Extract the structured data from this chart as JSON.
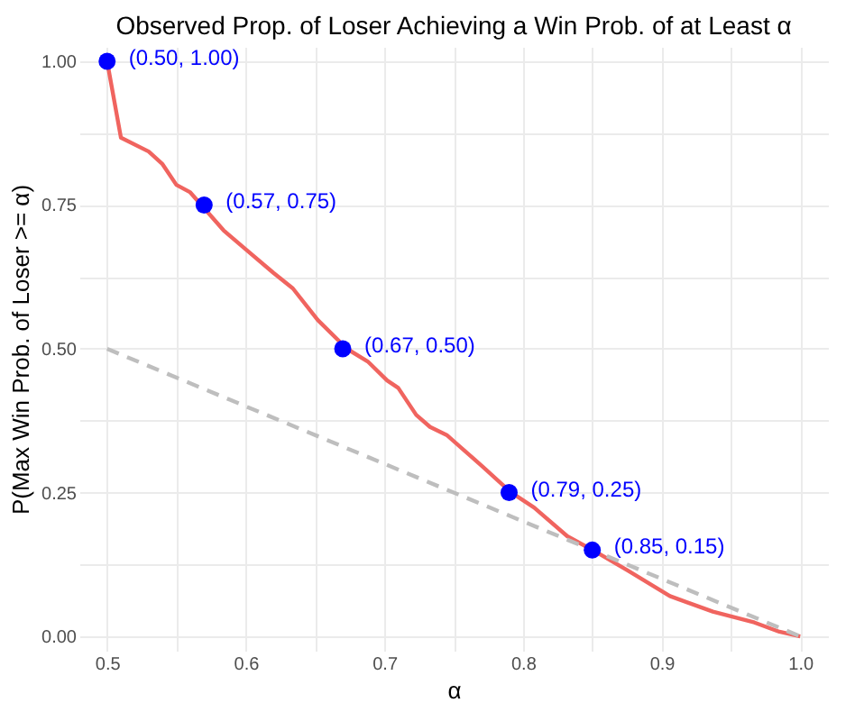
{
  "chart_data": {
    "type": "line",
    "title": "Observed Prop. of Loser Achieving a Win Prob. of at Least α",
    "xlabel": "α",
    "ylabel": "P(Max Win Prob. of Loser >= α)",
    "xlim": [
      0.48,
      1.02
    ],
    "ylim": [
      -0.025,
      1.025
    ],
    "grid": true,
    "xticks": [
      0.5,
      {
        "value": 0.55,
        "label": null
      },
      0.6,
      {
        "value": 0.65,
        "label": null
      },
      0.7,
      {
        "value": 0.75,
        "label": null
      },
      0.8,
      {
        "value": 0.85,
        "label": null
      },
      0.9,
      {
        "value": 0.95,
        "label": null
      },
      {
        "value": 1.0,
        "label": "1.0"
      }
    ],
    "yticks": [
      {
        "value": 0,
        "label": "0.00"
      },
      {
        "value": 0.125,
        "label": null
      },
      {
        "value": 0.25,
        "label": "0.25"
      },
      {
        "value": 0.375,
        "label": null
      },
      {
        "value": 0.5,
        "label": "0.50"
      },
      {
        "value": 0.625,
        "label": null
      },
      {
        "value": 0.75,
        "label": "0.75"
      },
      {
        "value": 0.875,
        "label": null
      },
      {
        "value": 1.0,
        "label": "1.00"
      }
    ],
    "series": [
      {
        "color": "#f0645f",
        "line_style": "solid",
        "x": [
          0.5,
          0.51,
          0.53,
          0.54,
          0.55,
          0.56,
          0.568,
          0.584,
          0.6,
          0.62,
          0.634,
          0.652,
          0.673,
          0.688,
          0.702,
          0.71,
          0.723,
          0.733,
          0.745,
          0.771,
          0.791,
          0.808,
          0.832,
          0.851,
          0.876,
          0.906,
          0.937,
          0.967,
          0.985,
          1.0
        ],
        "values": [
          1.0,
          0.867,
          0.843,
          0.821,
          0.785,
          0.772,
          0.75,
          0.706,
          0.673,
          0.632,
          0.605,
          0.55,
          0.5,
          0.478,
          0.445,
          0.432,
          0.385,
          0.364,
          0.35,
          0.295,
          0.251,
          0.224,
          0.174,
          0.149,
          0.114,
          0.07,
          0.043,
          0.024,
          0.008,
          0.0
        ]
      },
      {
        "type": "line",
        "color": "#bebebe",
        "line_style": "dashed",
        "x": [
          0.5,
          1.0
        ],
        "values": [
          0.5,
          0.0
        ]
      },
      {
        "type": "scatter",
        "color": "#0000ff",
        "marker": "circle",
        "x": [
          0.5,
          0.57,
          0.67,
          0.79,
          0.85
        ],
        "values": [
          1.0,
          0.75,
          0.5,
          0.25,
          0.15
        ],
        "value_labels": [
          "(0.50, 1.00)",
          "(0.57, 0.75)",
          "(0.67, 0.50)",
          "(0.79, 0.25)",
          "(0.85, 0.15)"
        ]
      }
    ]
  }
}
